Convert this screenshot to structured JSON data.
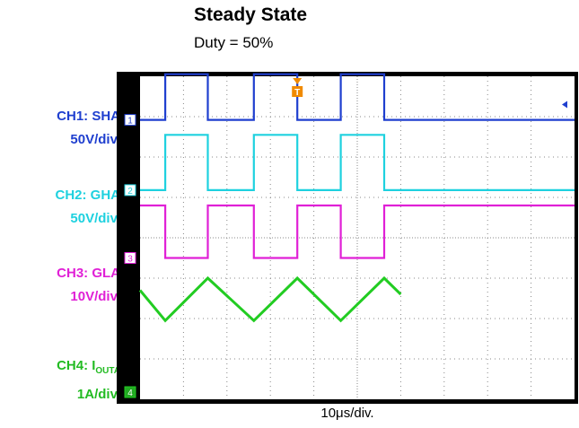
{
  "title": "Steady State",
  "subtitle": "Duty = 50%",
  "xlabel": "10μs/div.",
  "channels": [
    {
      "id": "CH1",
      "name_label": "CH1: SHA",
      "scale_label": "50V/div.",
      "marker": "1",
      "color": "#1f3fcf"
    },
    {
      "id": "CH2",
      "name_label": "CH2: GHA",
      "scale_label": "50V/div.",
      "marker": "2",
      "color": "#1ed1df"
    },
    {
      "id": "CH3",
      "name_label": "CH3: GLA",
      "scale_label": "10V/div.",
      "marker": "3",
      "color": "#e020d6"
    },
    {
      "id": "CH4",
      "name_prefix": "CH4: I",
      "name_sub": "OUTA",
      "scale_label": "1A/div.",
      "marker": "4",
      "color": "#22cc22"
    }
  ],
  "trigger_marker": "T",
  "chart_data": {
    "type": "line",
    "time_per_div_us": 10,
    "x_divisions": 10,
    "y_divisions": 8,
    "grid": true,
    "duty_cycle_percent": 50,
    "period_us": 20,
    "series": [
      {
        "name": "CH1: SHA",
        "kind": "square",
        "low_div": 6.92,
        "high_div": 8.05,
        "edges_us": [
          5.8,
          15.6,
          26.2,
          36.2,
          46.2,
          56.2
        ]
      },
      {
        "name": "CH2: GHA",
        "kind": "square",
        "low_div": 5.18,
        "high_div": 6.55,
        "edges_us": [
          5.8,
          15.6,
          26.2,
          36.2,
          46.2,
          56.2
        ]
      },
      {
        "name": "CH3: GLA",
        "kind": "square",
        "low_div": 3.5,
        "high_div": 4.8,
        "edges_us": [
          5.8,
          15.6,
          26.2,
          36.2,
          46.2,
          56.2
        ],
        "inverted": true
      },
      {
        "name": "CH4: IOUTA",
        "kind": "triangle",
        "min_div": 1.95,
        "max_div": 3.0,
        "points_us_div": [
          [
            0,
            2.7
          ],
          [
            5.8,
            1.95
          ],
          [
            15.6,
            3.0
          ],
          [
            26.2,
            1.95
          ],
          [
            36.2,
            3.0
          ],
          [
            46.2,
            1.95
          ],
          [
            56.2,
            3.0
          ],
          [
            60,
            2.6
          ]
        ]
      }
    ]
  }
}
